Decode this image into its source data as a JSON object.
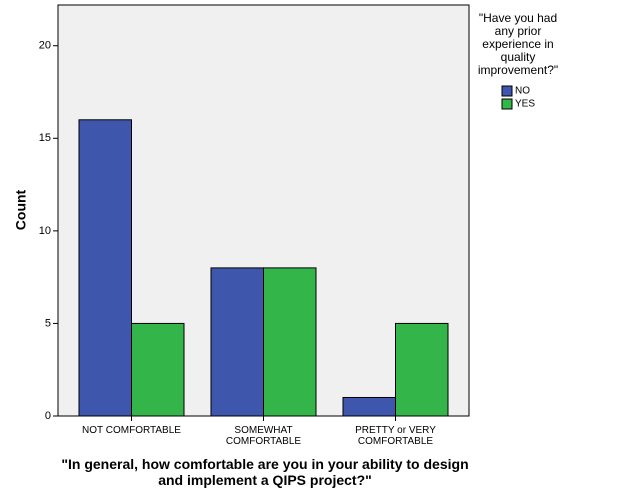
{
  "chart_data": {
    "type": "grouped_bar",
    "x_label": "\"In general, how comfortable are you in your ability to design and implement a QIPS project?\"",
    "y_label": "Count",
    "categories": [
      "NOT COMFORTABLE",
      "SOMEWHAT COMFORTABLE",
      "PRETTY or VERY COMFORTABLE"
    ],
    "series": [
      {
        "name": "NO",
        "color": "#3e56ab",
        "values": [
          16,
          8,
          1
        ]
      },
      {
        "name": "YES",
        "color": "#33b54a",
        "values": [
          5,
          8,
          5
        ]
      }
    ],
    "legend_title": "\"Have you had any prior experience in quality improvement?\"",
    "legend_position": "right",
    "ylim": [
      0,
      22.2
    ],
    "yticks": [
      0,
      5,
      10,
      15,
      20
    ],
    "plot_background": "#f0f0f0"
  }
}
